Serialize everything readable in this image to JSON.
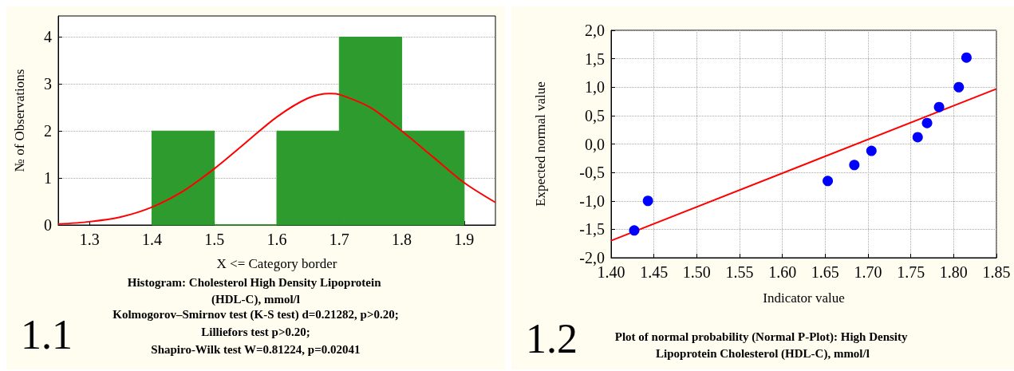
{
  "chart_data": [
    {
      "type": "histogram",
      "title": "Histogram: Cholesterol High Density Lipoprotein (HDL-C), mmol/l",
      "xlabel": "X <= Category border",
      "ylabel": "№ of Observations",
      "bins": [
        1.4,
        1.5,
        1.6,
        1.7,
        1.8,
        1.9
      ],
      "values": [
        2,
        0,
        2,
        4,
        2
      ],
      "color": "#2e9b2e",
      "series": [
        {
          "type": "line",
          "color": "#ff0000",
          "x": [
            1.25,
            1.3,
            1.35,
            1.4,
            1.45,
            1.5,
            1.55,
            1.6,
            1.65,
            1.685,
            1.7,
            1.75,
            1.8,
            1.85,
            1.9,
            1.95
          ],
          "values": [
            0.02,
            0.07,
            0.17,
            0.38,
            0.72,
            1.2,
            1.75,
            2.3,
            2.7,
            2.8,
            2.78,
            2.5,
            2.0,
            1.45,
            0.9,
            0.48
          ]
        }
      ],
      "xlim": [
        1.25,
        1.95
      ],
      "xticks": [
        1.3,
        1.4,
        1.5,
        1.6,
        1.7,
        1.8,
        1.9
      ],
      "ylim": [
        0,
        4.45
      ],
      "yticks": [
        0,
        1,
        2,
        3,
        4
      ],
      "grid": "y",
      "annotations": [
        "1.1",
        "Kolmogorov–Smirnov test (K-S test) d=0.21282, p>0.20;",
        "Lilliefors test p>0.20;",
        "Shapiro-Wilk test W=0.81224, p=0.02041"
      ]
    },
    {
      "type": "scatter",
      "title": "Plot of normal probability (Normal P-Plot): High Density Lipoprotein Cholesterol (HDL-C), mmol/l",
      "xlabel": "Indicator value",
      "ylabel": "Expected normal value",
      "series": [
        {
          "color": "#0000ff",
          "marker": "circle",
          "x": [
            1.427,
            1.443,
            1.653,
            1.684,
            1.704,
            1.758,
            1.769,
            1.783,
            1.806,
            1.815
          ],
          "values": [
            -1.52,
            -1.0,
            -0.65,
            -0.37,
            -0.12,
            0.12,
            0.37,
            0.65,
            1.0,
            1.52
          ]
        },
        {
          "type": "line",
          "color": "#ff0000",
          "x": [
            1.4,
            1.85
          ],
          "values": [
            -1.7,
            0.97
          ]
        }
      ],
      "xlim": [
        1.4,
        1.85
      ],
      "xticks": [
        {
          "value": 1.4,
          "label": "1.40"
        },
        {
          "value": 1.45,
          "label": "1.45"
        },
        {
          "value": 1.5,
          "label": "1.50"
        },
        {
          "value": 1.55,
          "label": "1.55"
        },
        {
          "value": 1.6,
          "label": "1.60"
        },
        {
          "value": 1.65,
          "label": "1.65"
        },
        {
          "value": 1.7,
          "label": "1.70"
        },
        {
          "value": 1.75,
          "label": "1.75"
        },
        {
          "value": 1.8,
          "label": "1.80"
        },
        {
          "value": 1.85,
          "label": "1.85"
        }
      ],
      "ylim": [
        -2,
        2
      ],
      "yticks": [
        {
          "value": -2,
          "label": "-2,0"
        },
        {
          "value": -1.5,
          "label": "-1,5"
        },
        {
          "value": -1,
          "label": "-1,0"
        },
        {
          "value": -0.5,
          "label": "-0,5"
        },
        {
          "value": 0,
          "label": "0,0"
        },
        {
          "value": 0.5,
          "label": "0,5"
        },
        {
          "value": 1,
          "label": "1,0"
        },
        {
          "value": 1.5,
          "label": "1,5"
        },
        {
          "value": 2,
          "label": "2,0"
        }
      ],
      "grid": true,
      "annotations": [
        "1.2"
      ]
    }
  ]
}
